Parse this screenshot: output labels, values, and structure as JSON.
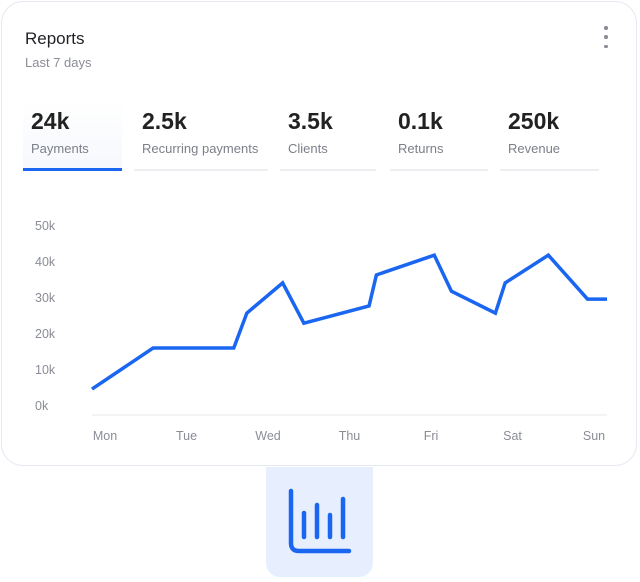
{
  "header": {
    "title": "Reports",
    "subtitle": "Last 7 days",
    "menu_icon": "more-vertical-icon"
  },
  "tabs": [
    {
      "value": "24k",
      "label": "Payments",
      "active": true
    },
    {
      "value": "2.5k",
      "label": "Recurring payments"
    },
    {
      "value": "3.5k",
      "label": "Clients"
    },
    {
      "value": "0.1k",
      "label": "Returns"
    },
    {
      "value": "250k",
      "label": "Revenue"
    }
  ],
  "colors": {
    "accent": "#1a66f0",
    "badge_bg": "#e7efff"
  },
  "badge_icon": "bar-chart-icon",
  "chart_data": {
    "type": "line",
    "categories": [
      "Mon",
      "Tue",
      "Wed",
      "Thu",
      "Fri",
      "Sat",
      "Sun"
    ],
    "yticks": [
      "0k",
      "10k",
      "20k",
      "30k",
      "40k",
      "50k"
    ],
    "ylim": [
      0,
      50
    ],
    "grid": false,
    "series": [
      {
        "x": [
          -0.16,
          0.59,
          1.58,
          1.74,
          2.18,
          2.44,
          3.24,
          3.33,
          4.04,
          4.25,
          4.79,
          4.91,
          5.44,
          5.92,
          6.16
        ],
        "values": [
          4.7,
          16.1,
          16.1,
          25.8,
          34.2,
          23,
          27.8,
          36.4,
          41.9,
          31.9,
          25.8,
          34.2,
          41.9,
          29.7,
          29.7
        ]
      }
    ]
  }
}
